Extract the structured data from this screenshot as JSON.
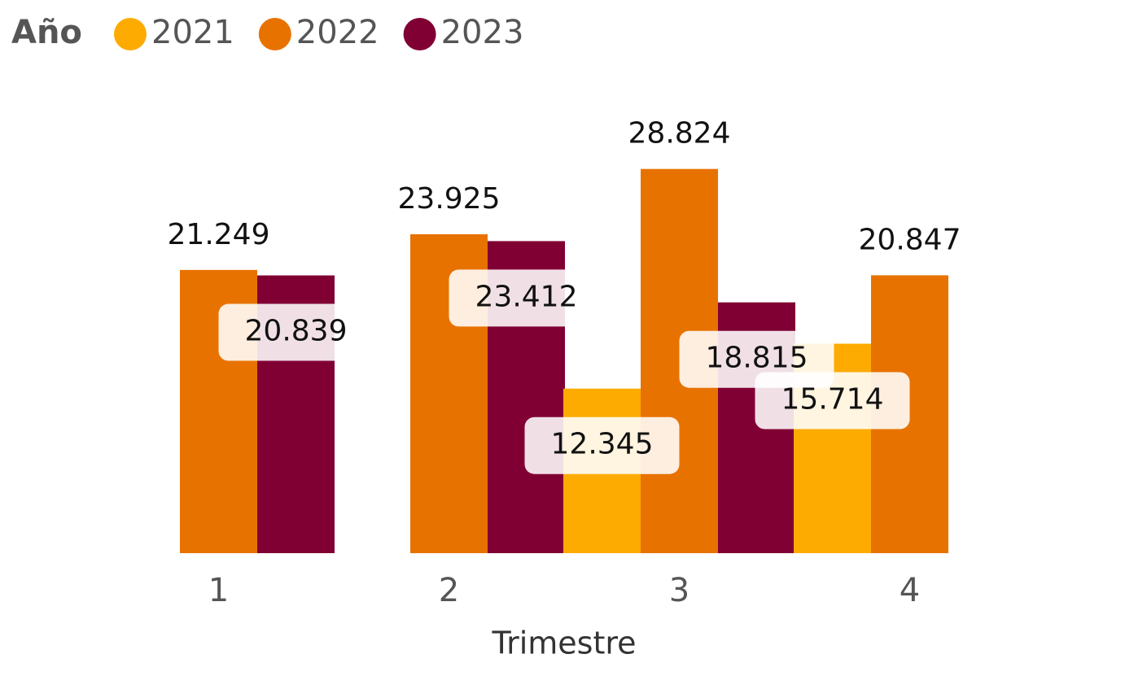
{
  "chart_data": {
    "type": "bar",
    "legend_title": "Año",
    "x_label": "Trimestre",
    "categories": [
      "1",
      "2",
      "3",
      "4"
    ],
    "series": [
      {
        "name": "2021",
        "color": "#fdab00",
        "values": [
          null,
          null,
          12345,
          15714
        ],
        "value_labels": [
          null,
          null,
          "12.345",
          "15.714"
        ]
      },
      {
        "name": "2022",
        "color": "#e87200",
        "values": [
          21249,
          23925,
          28824,
          20847
        ],
        "value_labels": [
          "21.249",
          "23.925",
          "28.824",
          "20.847"
        ]
      },
      {
        "name": "2023",
        "color": "#800034",
        "values": [
          20839,
          23412,
          18815,
          null
        ],
        "value_labels": [
          "20.839",
          "23.412",
          "18.815",
          null
        ]
      }
    ],
    "ylim": [
      0,
      41500
    ]
  }
}
